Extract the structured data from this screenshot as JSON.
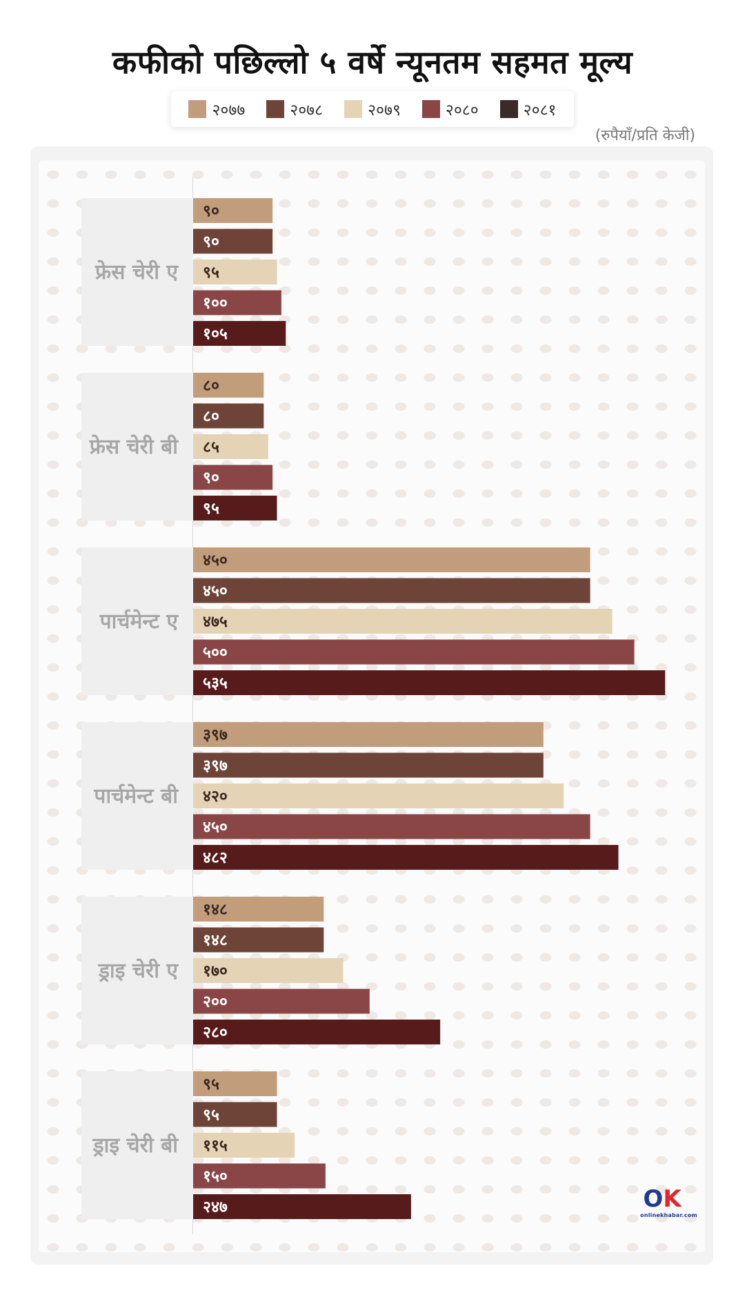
{
  "title": "कफीको पछिल्लो ५ वर्षे न्यूनतम सहमत मूल्य",
  "unit_note": "(रुपैयाँ/प्रति केजी)",
  "logo_text": "onlinekhabar.com",
  "colors": {
    "२०७७": "#c29d7c",
    "२०७८": "#6d4437",
    "२०७९": "#e5d3b5",
    "२०८०": "#8a4646",
    "२०८१": "#571b1c",
    "category_label": "#a7a7a7",
    "category_band": "#efefef"
  },
  "chart_data": {
    "type": "bar",
    "orientation": "horizontal",
    "title": "कफीको पछिल्लो ५ वर्षे न्यूनतम सहमत मूल्य",
    "unit": "(रुपैयाँ/प्रति केजी)",
    "legend_position": "top",
    "grid": false,
    "xlim": [
      0,
      600
    ],
    "categories": [
      "फ्रेस चेरी ए",
      "फ्रेस चेरी बी",
      "पार्चमेन्ट ए",
      "पार्चमेन्ट बी",
      "ड्राइ चेरी ए",
      "ड्राइ चेरी बी"
    ],
    "series": [
      {
        "name": "२०७७",
        "values": [
          90,
          80,
          450,
          397,
          148,
          95
        ],
        "labels": [
          "९०",
          "८०",
          "४५०",
          "३९७",
          "१४८",
          "९५"
        ]
      },
      {
        "name": "२०७८",
        "values": [
          90,
          80,
          450,
          397,
          148,
          95
        ],
        "labels": [
          "९०",
          "८०",
          "४५०",
          "३९७",
          "१४८",
          "९५"
        ]
      },
      {
        "name": "२०७९",
        "values": [
          95,
          85,
          475,
          420,
          170,
          115
        ],
        "labels": [
          "९५",
          "८५",
          "४७५",
          "४२०",
          "१७०",
          "११५"
        ]
      },
      {
        "name": "२०८०",
        "values": [
          100,
          90,
          500,
          450,
          200,
          150
        ],
        "labels": [
          "१००",
          "९०",
          "५००",
          "४५०",
          "२००",
          "१५०"
        ]
      },
      {
        "name": "२०८१",
        "values": [
          105,
          95,
          535,
          482,
          280,
          247
        ],
        "labels": [
          "१०५",
          "९५",
          "५३५",
          "४८२",
          "२८०",
          "२४७"
        ]
      }
    ]
  }
}
